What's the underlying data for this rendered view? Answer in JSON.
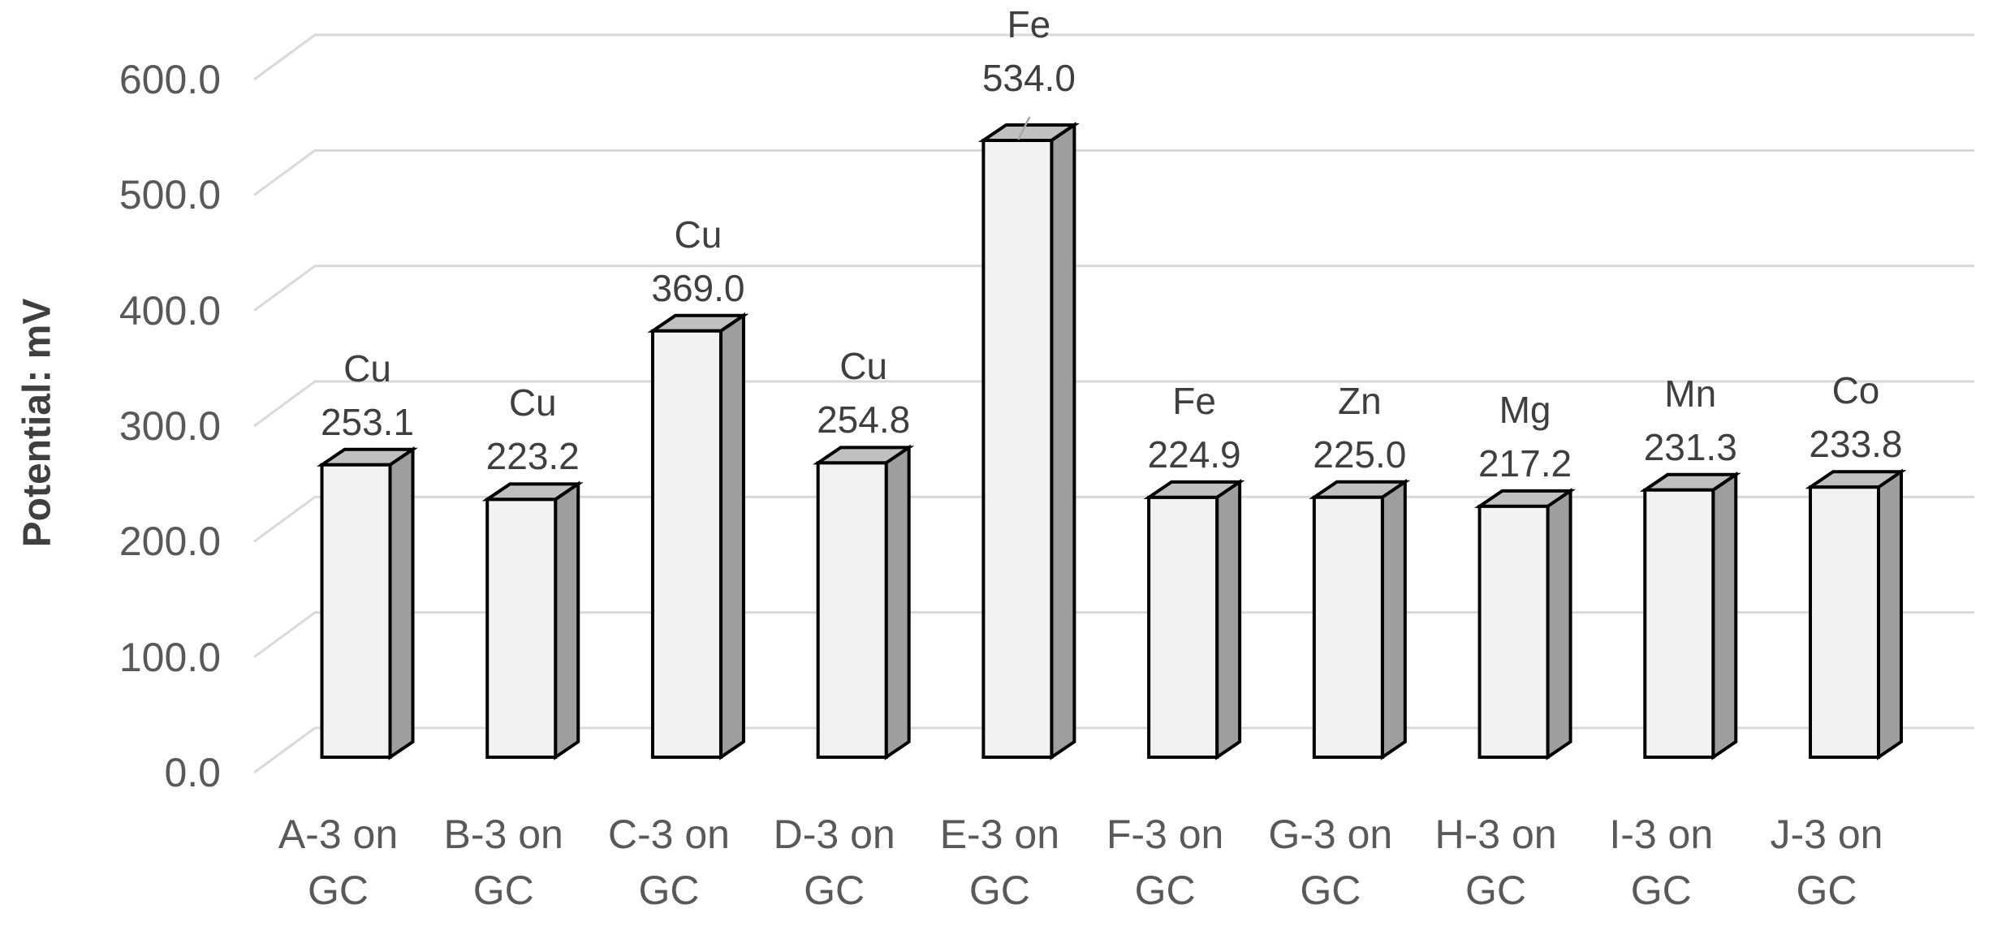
{
  "chart_data": {
    "type": "bar",
    "style": "3d-column",
    "title": "",
    "y_axis": {
      "label": "Potential: mV",
      "min": 0,
      "max": 600,
      "step": 100,
      "grid": true,
      "tick_labels": [
        "0.0",
        "100.0",
        "200.0",
        "300.0",
        "400.0",
        "500.0",
        "600.0"
      ]
    },
    "categories": [
      "A-3 on GC",
      "B-3 on GC",
      "C-3 on GC",
      "D-3 on GC",
      "E-3 on GC",
      "F-3 on GC",
      "G-3 on GC",
      "H-3 on GC",
      "I-3 on GC",
      "J-3 on GC"
    ],
    "points": [
      {
        "category": "A-3 on GC",
        "metal": "Cu",
        "value": 253.1
      },
      {
        "category": "B-3 on GC",
        "metal": "Cu",
        "value": 223.2
      },
      {
        "category": "C-3 on GC",
        "metal": "Cu",
        "value": 369.0
      },
      {
        "category": "D-3 on GC",
        "metal": "Cu",
        "value": 254.8
      },
      {
        "category": "E-3 on GC",
        "metal": "Fe",
        "value": 534.0,
        "label_moved": true
      },
      {
        "category": "F-3 on GC",
        "metal": "Fe",
        "value": 224.9
      },
      {
        "category": "G-3 on GC",
        "metal": "Zn",
        "value": 225.0
      },
      {
        "category": "H-3 on GC",
        "metal": "Mg",
        "value": 217.2
      },
      {
        "category": "I-3 on GC",
        "metal": "Mn",
        "value": 231.3
      },
      {
        "category": "J-3 on GC",
        "metal": "Co",
        "value": 233.8
      }
    ],
    "legend": "none",
    "colors": {
      "bar_front": "#f2f2f2",
      "bar_top": "#c0c0c0",
      "bar_side": "#9e9e9e",
      "bar_outline": "#000000",
      "gridline": "#d9d9d9",
      "leader_line": "#a6a6a6",
      "tick_text": "#595959",
      "category_text": "#595959",
      "data_label_text": "#3f3f3f",
      "axis_title_text": "#3f3f3f",
      "background": "#ffffff"
    }
  }
}
